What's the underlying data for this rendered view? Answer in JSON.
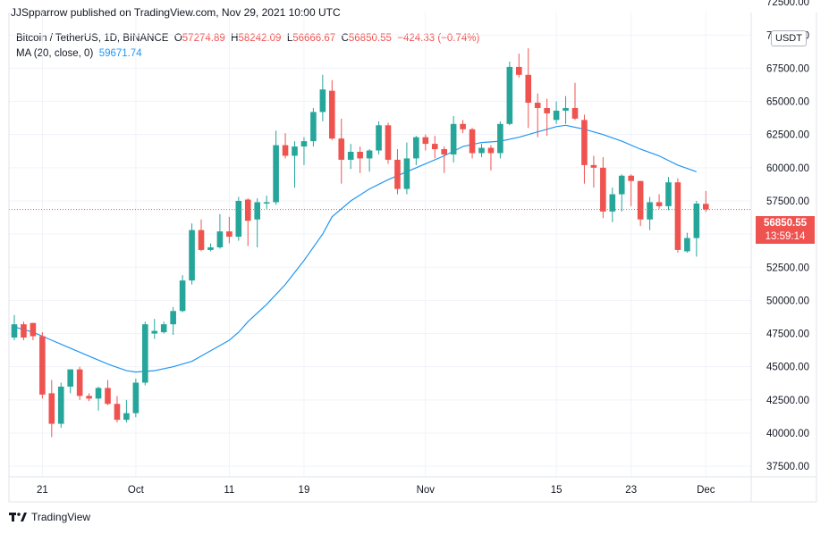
{
  "header": {
    "published": "JJSpparrow published on TradingView.com, Nov 29, 2021 10:00 UTC"
  },
  "legend": {
    "symbol": "Bitcoin / TetherUS, 1D, BINANCE",
    "open_label": "O",
    "open": "57274.89",
    "high_label": "H",
    "high": "58242.09",
    "low_label": "L",
    "low": "56666.67",
    "close_label": "C",
    "close": "56850.55",
    "change": "−424.33 (−0.74%)",
    "ma_label": "MA (20, close, 0)",
    "ma_value": "59671.74"
  },
  "price_axis": {
    "unit": "USDT"
  },
  "last_price": {
    "value": "56850.55",
    "countdown": "13:59:14"
  },
  "footer": {
    "brand": "TradingView"
  },
  "colors": {
    "up": "#26a69a",
    "down": "#ef5350",
    "ma": "#2196f3",
    "grid": "#f0f3fa"
  },
  "chart_data": {
    "type": "candlestick",
    "ylim": [
      36700,
      71700
    ],
    "y_ticks": [
      "37500.00",
      "40000.00",
      "42500.00",
      "45000.00",
      "47500.00",
      "50000.00",
      "52500.00",
      "55000.00",
      "57500.00",
      "60000.00",
      "62500.00",
      "65000.00",
      "67500.00",
      "70000.00",
      "72500.00"
    ],
    "x_tick_labels": [
      {
        "index": 3,
        "label": "21"
      },
      {
        "index": 13,
        "label": "Oct"
      },
      {
        "index": 23,
        "label": "11"
      },
      {
        "index": 31,
        "label": "19"
      },
      {
        "index": 44,
        "label": "Nov"
      },
      {
        "index": 58,
        "label": "15"
      },
      {
        "index": 66,
        "label": "23"
      },
      {
        "index": 74,
        "label": "Dec"
      }
    ],
    "x_start_date": "2021-09-18",
    "last_price": 56850.55,
    "candles": [
      {
        "o": 47200,
        "h": 48900,
        "l": 47000,
        "c": 48200
      },
      {
        "o": 48200,
        "h": 48400,
        "l": 47000,
        "c": 47200
      },
      {
        "o": 48300,
        "h": 48300,
        "l": 47000,
        "c": 47300
      },
      {
        "o": 47300,
        "h": 47600,
        "l": 42600,
        "c": 42900
      },
      {
        "o": 43000,
        "h": 44000,
        "l": 39700,
        "c": 40700
      },
      {
        "o": 40700,
        "h": 43800,
        "l": 40400,
        "c": 43500
      },
      {
        "o": 43500,
        "h": 44800,
        "l": 43000,
        "c": 44800
      },
      {
        "o": 44800,
        "h": 45000,
        "l": 42500,
        "c": 42800
      },
      {
        "o": 42800,
        "h": 43000,
        "l": 42400,
        "c": 42600
      },
      {
        "o": 42600,
        "h": 43500,
        "l": 41700,
        "c": 43400
      },
      {
        "o": 43400,
        "h": 44000,
        "l": 42100,
        "c": 42200
      },
      {
        "o": 42200,
        "h": 42800,
        "l": 40800,
        "c": 41000
      },
      {
        "o": 41000,
        "h": 42500,
        "l": 40800,
        "c": 41500
      },
      {
        "o": 41500,
        "h": 44100,
        "l": 41200,
        "c": 43800
      },
      {
        "o": 43800,
        "h": 48400,
        "l": 43600,
        "c": 48200
      },
      {
        "o": 47500,
        "h": 48600,
        "l": 47100,
        "c": 47700
      },
      {
        "o": 47600,
        "h": 48400,
        "l": 47500,
        "c": 48200
      },
      {
        "o": 48200,
        "h": 49500,
        "l": 47400,
        "c": 49200
      },
      {
        "o": 49200,
        "h": 51900,
        "l": 49100,
        "c": 51500
      },
      {
        "o": 51500,
        "h": 55800,
        "l": 51200,
        "c": 55300
      },
      {
        "o": 55300,
        "h": 56100,
        "l": 53700,
        "c": 53800
      },
      {
        "o": 53800,
        "h": 54300,
        "l": 53700,
        "c": 54000
      },
      {
        "o": 54000,
        "h": 56500,
        "l": 53900,
        "c": 55200
      },
      {
        "o": 55200,
        "h": 56300,
        "l": 54300,
        "c": 54800
      },
      {
        "o": 54800,
        "h": 57800,
        "l": 54500,
        "c": 57500
      },
      {
        "o": 57600,
        "h": 57700,
        "l": 54100,
        "c": 56000
      },
      {
        "o": 56100,
        "h": 57700,
        "l": 54000,
        "c": 57400
      },
      {
        "o": 57300,
        "h": 57900,
        "l": 56900,
        "c": 57400
      },
      {
        "o": 57400,
        "h": 62800,
        "l": 57200,
        "c": 61700
      },
      {
        "o": 61700,
        "h": 62600,
        "l": 60700,
        "c": 60900
      },
      {
        "o": 60900,
        "h": 62000,
        "l": 58500,
        "c": 61600
      },
      {
        "o": 61600,
        "h": 62300,
        "l": 60200,
        "c": 62000
      },
      {
        "o": 62000,
        "h": 64500,
        "l": 61600,
        "c": 64200
      },
      {
        "o": 64200,
        "h": 67000,
        "l": 63500,
        "c": 65900
      },
      {
        "o": 65800,
        "h": 66600,
        "l": 62100,
        "c": 62200
      },
      {
        "o": 62200,
        "h": 63700,
        "l": 58800,
        "c": 60600
      },
      {
        "o": 60600,
        "h": 61800,
        "l": 59900,
        "c": 61200
      },
      {
        "o": 61200,
        "h": 61600,
        "l": 59600,
        "c": 60700
      },
      {
        "o": 60700,
        "h": 61400,
        "l": 59700,
        "c": 61300
      },
      {
        "o": 61300,
        "h": 63500,
        "l": 61000,
        "c": 63200
      },
      {
        "o": 63200,
        "h": 63400,
        "l": 60300,
        "c": 60600
      },
      {
        "o": 60600,
        "h": 61400,
        "l": 58000,
        "c": 58400
      },
      {
        "o": 58400,
        "h": 61900,
        "l": 58000,
        "c": 60700
      },
      {
        "o": 60700,
        "h": 62400,
        "l": 60200,
        "c": 62300
      },
      {
        "o": 62300,
        "h": 62500,
        "l": 61300,
        "c": 61800
      },
      {
        "o": 61800,
        "h": 62400,
        "l": 60700,
        "c": 61400
      },
      {
        "o": 61400,
        "h": 61600,
        "l": 59600,
        "c": 61000
      },
      {
        "o": 61000,
        "h": 63900,
        "l": 60400,
        "c": 63300
      },
      {
        "o": 63300,
        "h": 63600,
        "l": 62600,
        "c": 62900
      },
      {
        "o": 62900,
        "h": 63000,
        "l": 60700,
        "c": 61100
      },
      {
        "o": 61100,
        "h": 61800,
        "l": 60800,
        "c": 61500
      },
      {
        "o": 61500,
        "h": 61700,
        "l": 59800,
        "c": 61100
      },
      {
        "o": 61100,
        "h": 63500,
        "l": 60700,
        "c": 63300
      },
      {
        "o": 63300,
        "h": 68000,
        "l": 63200,
        "c": 67600
      },
      {
        "o": 67600,
        "h": 68600,
        "l": 66800,
        "c": 67000
      },
      {
        "o": 67000,
        "h": 69000,
        "l": 63000,
        "c": 64900
      },
      {
        "o": 64900,
        "h": 65600,
        "l": 62300,
        "c": 64500
      },
      {
        "o": 64500,
        "h": 65200,
        "l": 62400,
        "c": 64100
      },
      {
        "o": 63600,
        "h": 65000,
        "l": 63300,
        "c": 64300
      },
      {
        "o": 64300,
        "h": 65400,
        "l": 63300,
        "c": 64500
      },
      {
        "o": 64500,
        "h": 66400,
        "l": 63600,
        "c": 63700
      },
      {
        "o": 63600,
        "h": 64000,
        "l": 58800,
        "c": 60200
      },
      {
        "o": 60200,
        "h": 60900,
        "l": 58500,
        "c": 60000
      },
      {
        "o": 60000,
        "h": 60800,
        "l": 56200,
        "c": 56700
      },
      {
        "o": 56700,
        "h": 58500,
        "l": 55900,
        "c": 58000
      },
      {
        "o": 58000,
        "h": 59500,
        "l": 56700,
        "c": 59400
      },
      {
        "o": 59400,
        "h": 59500,
        "l": 57100,
        "c": 59000
      },
      {
        "o": 59000,
        "h": 59000,
        "l": 55600,
        "c": 56100
      },
      {
        "o": 56100,
        "h": 57800,
        "l": 55300,
        "c": 57400
      },
      {
        "o": 57400,
        "h": 58000,
        "l": 56900,
        "c": 57100
      },
      {
        "o": 57100,
        "h": 59300,
        "l": 56800,
        "c": 58900
      },
      {
        "o": 58900,
        "h": 59200,
        "l": 53600,
        "c": 53800
      },
      {
        "o": 53700,
        "h": 55100,
        "l": 53600,
        "c": 54700
      },
      {
        "o": 54700,
        "h": 57500,
        "l": 53300,
        "c": 57300
      },
      {
        "o": 57274.89,
        "h": 58242.09,
        "l": 56666.67,
        "c": 56850.55
      }
    ],
    "ma": [
      {
        "i": 0,
        "v": 48000
      },
      {
        "i": 2,
        "v": 47600
      },
      {
        "i": 4,
        "v": 47000
      },
      {
        "i": 6,
        "v": 46400
      },
      {
        "i": 8,
        "v": 45800
      },
      {
        "i": 10,
        "v": 45200
      },
      {
        "i": 12,
        "v": 44700
      },
      {
        "i": 13,
        "v": 44600
      },
      {
        "i": 15,
        "v": 44700
      },
      {
        "i": 17,
        "v": 45000
      },
      {
        "i": 19,
        "v": 45400
      },
      {
        "i": 21,
        "v": 46200
      },
      {
        "i": 23,
        "v": 47000
      },
      {
        "i": 24,
        "v": 47600
      },
      {
        "i": 25,
        "v": 48400
      },
      {
        "i": 27,
        "v": 49700
      },
      {
        "i": 29,
        "v": 51200
      },
      {
        "i": 31,
        "v": 53000
      },
      {
        "i": 33,
        "v": 55000
      },
      {
        "i": 34,
        "v": 56300
      },
      {
        "i": 36,
        "v": 57500
      },
      {
        "i": 38,
        "v": 58400
      },
      {
        "i": 40,
        "v": 59100
      },
      {
        "i": 42,
        "v": 59700
      },
      {
        "i": 44,
        "v": 60300
      },
      {
        "i": 46,
        "v": 60900
      },
      {
        "i": 48,
        "v": 61600
      },
      {
        "i": 50,
        "v": 61900
      },
      {
        "i": 52,
        "v": 62000
      },
      {
        "i": 54,
        "v": 62300
      },
      {
        "i": 56,
        "v": 62700
      },
      {
        "i": 58,
        "v": 63100
      },
      {
        "i": 59,
        "v": 63200
      },
      {
        "i": 61,
        "v": 62900
      },
      {
        "i": 63,
        "v": 62500
      },
      {
        "i": 65,
        "v": 62000
      },
      {
        "i": 67,
        "v": 61400
      },
      {
        "i": 69,
        "v": 60900
      },
      {
        "i": 71,
        "v": 60200
      },
      {
        "i": 73,
        "v": 59700
      }
    ]
  }
}
